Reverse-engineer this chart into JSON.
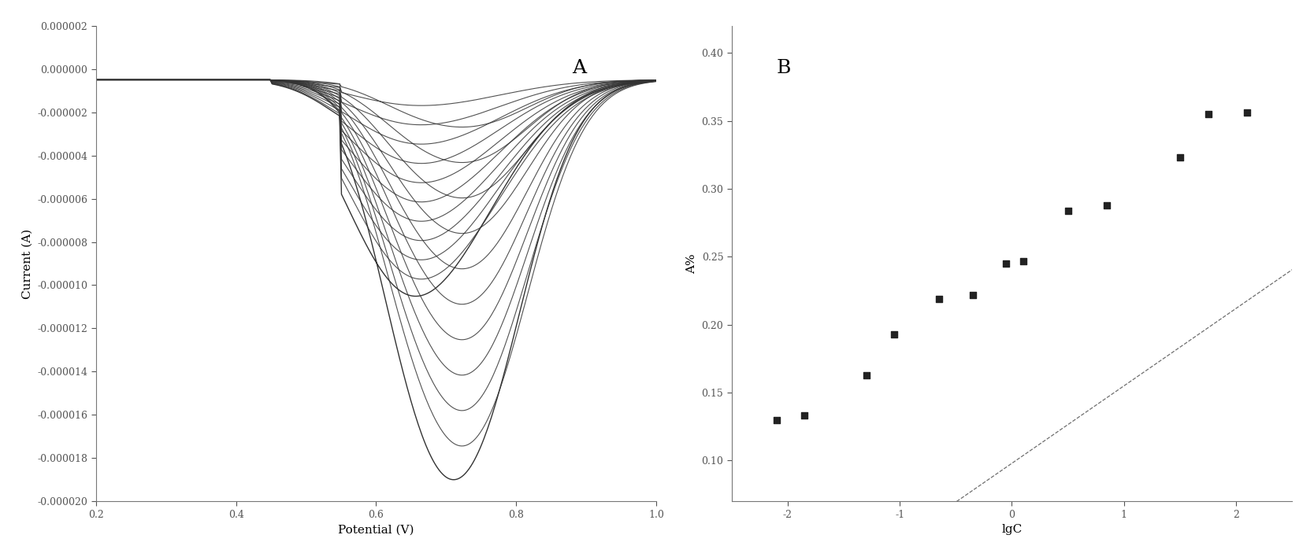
{
  "panel_A_label": "A",
  "panel_B_label": "B",
  "xlabel_A": "Potential (V)",
  "ylabel_A": "Current (A)",
  "xlim_A": [
    0.2,
    1.0
  ],
  "ylim_A": [
    -2e-05,
    2e-06
  ],
  "yticks_A": [
    2e-06,
    0.0,
    -2e-06,
    -4e-06,
    -6e-06,
    -8e-06,
    -1e-05,
    -1.2e-05,
    -1.4e-05,
    -1.6e-05,
    -1.8e-05,
    -2e-05
  ],
  "xticks_A": [
    0.2,
    0.4,
    0.6,
    0.8,
    1.0
  ],
  "xlabel_B": "lgC",
  "ylabel_B": "A%",
  "xlim_B": [
    -2.5,
    2.5
  ],
  "ylim_B": [
    0.07,
    0.42
  ],
  "xticks_B": [
    -2,
    -1,
    0,
    1,
    2
  ],
  "yticks_B": [
    0.1,
    0.15,
    0.2,
    0.25,
    0.3,
    0.35,
    0.4
  ],
  "scatter_x": [
    -2.1,
    -1.85,
    -1.3,
    -1.05,
    -0.65,
    -0.35,
    -0.05,
    0.1,
    0.5,
    0.85,
    1.5,
    1.75,
    2.1
  ],
  "scatter_y": [
    0.13,
    0.133,
    0.163,
    0.193,
    0.219,
    0.222,
    0.245,
    0.247,
    0.284,
    0.288,
    0.323,
    0.355,
    0.356
  ],
  "line_slope": 0.057,
  "line_intercept": 0.098,
  "line_color": "#555555",
  "scatter_color": "#222222",
  "cv_color": "#333333"
}
